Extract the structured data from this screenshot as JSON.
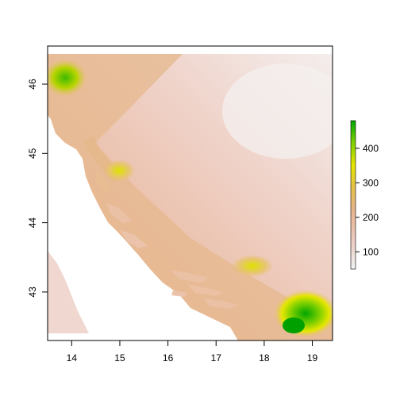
{
  "map": {
    "x_ticks": [
      "14",
      "15",
      "16",
      "17",
      "18",
      "19"
    ],
    "y_ticks": [
      "43",
      "44",
      "45",
      "46"
    ],
    "x_range": [
      13.5,
      19.42
    ],
    "y_range": [
      42.3,
      46.55
    ]
  },
  "legend": {
    "ticks": [
      "100",
      "200",
      "300",
      "400"
    ],
    "range": [
      50,
      480
    ],
    "colors": {
      "low": "#f2f2f2",
      "mid_low": "#ecb9a2",
      "mid": "#e8c08a",
      "mid_high": "#e6e600",
      "high": "#00a600"
    }
  }
}
